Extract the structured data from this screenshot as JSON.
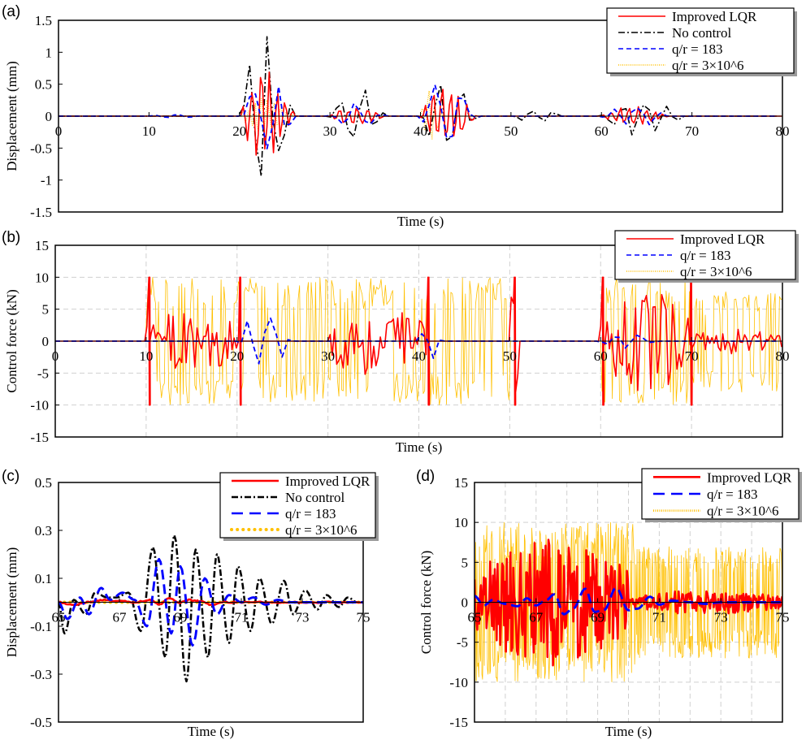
{
  "chart_data": [
    {
      "panel": "(a)",
      "type": "line",
      "xlabel": "Time (s)",
      "ylabel": "Displacement (mm)",
      "xlim": [
        0,
        80
      ],
      "ylim": [
        -1.5,
        1.5
      ],
      "xticks": [
        "0",
        "10",
        "20",
        "30",
        "40",
        "50",
        "60",
        "70",
        "80"
      ],
      "yticks": [
        "1.5",
        "1",
        "0.5",
        "0",
        "-0.5",
        "-1",
        "-1.5"
      ],
      "ytick_values": [
        1.5,
        1,
        0.5,
        0,
        -0.5,
        -1,
        -1.5
      ],
      "grid": false,
      "legend_position": "top-right",
      "series": [
        {
          "name": "Improved LQR",
          "color": "#ff0000",
          "style": "solid",
          "bursts": [
            [
              20,
              30,
              0.75
            ],
            [
              30,
              40,
              0.15
            ],
            [
              40,
              50,
              0.5
            ],
            [
              60,
              72,
              0.15
            ]
          ]
        },
        {
          "name": "No control",
          "color": "#000000",
          "style": "dashdot",
          "bursts": [
            [
              20,
              30,
              1.35
            ],
            [
              30,
              40,
              0.5
            ],
            [
              40,
              50,
              0.65
            ],
            [
              50,
              60,
              0.1
            ],
            [
              60,
              75,
              0.3
            ]
          ]
        },
        {
          "name": "q/r = 183",
          "color": "#0000ff",
          "style": "dashed",
          "bursts": [
            [
              10,
              20,
              0.03
            ],
            [
              20,
              30,
              0.8
            ],
            [
              30,
              40,
              0.2
            ],
            [
              40,
              50,
              0.55
            ],
            [
              60,
              72,
              0.2
            ]
          ]
        },
        {
          "name": "q/r = 3×10^6",
          "color": "#ffc000",
          "style": "dotted",
          "bursts": [
            [
              20,
              30,
              0.3
            ],
            [
              40,
              44,
              0.45
            ]
          ]
        }
      ],
      "peaks": {
        "No control": {
          "max": 1.35,
          "min": -1.17
        },
        "Improved LQR": {
          "max": 0.75,
          "min": -0.6
        }
      }
    },
    {
      "panel": "(b)",
      "type": "line",
      "xlabel": "Time (s)",
      "ylabel": "Control force (kN)",
      "xlim": [
        0,
        80
      ],
      "ylim": [
        -15,
        15
      ],
      "xticks": [
        "0",
        "10",
        "20",
        "30",
        "40",
        "50",
        "60",
        "70",
        "80"
      ],
      "yticks": [
        "15",
        "10",
        "5",
        "0",
        "-5",
        "-10",
        "-15"
      ],
      "ytick_values": [
        15,
        10,
        5,
        0,
        -5,
        -10,
        -15
      ],
      "grid": true,
      "legend_position": "top-right",
      "series": [
        {
          "name": "Improved LQR",
          "color": "#ff0000",
          "style": "solid",
          "bursts": [
            [
              10,
              20,
              5
            ],
            [
              30,
              41,
              6
            ],
            [
              50,
              51,
              10
            ],
            [
              60,
              70,
              8
            ],
            [
              70,
              80,
              2
            ]
          ]
        },
        {
          "name": "q/r = 183",
          "color": "#0000ff",
          "style": "dashed",
          "bursts": [
            [
              20,
              30,
              5.5
            ],
            [
              40,
              44,
              4
            ],
            [
              60,
              70,
              1.5
            ]
          ]
        },
        {
          "name": "q/r = 3×10^6",
          "color": "#ffc000",
          "style": "dotted",
          "bursts": [
            [
              10,
              50,
              10
            ],
            [
              60,
              70,
              10
            ],
            [
              70,
              80,
              8
            ]
          ]
        }
      ],
      "saturation_limit": 10
    },
    {
      "panel": "(c)",
      "type": "line",
      "xlabel": "Time (s)",
      "ylabel": "Displacement (mm)",
      "xlim": [
        65,
        75
      ],
      "ylim": [
        -0.5,
        0.5
      ],
      "xticks": [
        "65",
        "67",
        "69",
        "71",
        "73",
        "75"
      ],
      "xtick_values": [
        65,
        67,
        69,
        71,
        73,
        75
      ],
      "yticks": [
        "0.5",
        "0.3",
        "0.1",
        "-0.1",
        "-0.3",
        "-0.5"
      ],
      "ytick_values": [
        0.5,
        0.3,
        0.1,
        -0.1,
        -0.3,
        -0.5
      ],
      "grid": false,
      "legend_position": "top-right",
      "series": [
        {
          "name": "Improved LQR",
          "color": "#ff0000",
          "style": "solid",
          "x": [
            65,
            65.5,
            66,
            66.5,
            67,
            67.5,
            68,
            68.3,
            68.6,
            69,
            69.3,
            69.6,
            70,
            70.5,
            71,
            72,
            73,
            74,
            75
          ],
          "y": [
            0,
            -0.01,
            0,
            0.01,
            0.005,
            0,
            0.01,
            -0.01,
            0.015,
            0,
            0.01,
            0.005,
            -0.01,
            0,
            0,
            0,
            0,
            0,
            0
          ]
        },
        {
          "name": "No control",
          "color": "#000000",
          "style": "dashdot",
          "x": [
            65,
            65.2,
            65.5,
            65.9,
            66.2,
            66.6,
            66.9,
            67.3,
            67.7,
            68.1,
            68.5,
            68.8,
            69.2,
            69.5,
            69.9,
            70.2,
            70.6,
            70.9,
            71.3,
            71.6,
            72,
            72.4,
            72.7,
            73.1,
            73.5,
            73.8,
            74.2,
            74.5,
            74.8,
            75
          ],
          "y": [
            0,
            -0.13,
            0.01,
            -0.05,
            0.04,
            0.02,
            0.02,
            0.04,
            -0.12,
            0.23,
            -0.23,
            0.28,
            -0.33,
            0.22,
            -0.23,
            0.2,
            -0.17,
            0.15,
            -0.12,
            0.1,
            -0.09,
            0.09,
            -0.05,
            0.05,
            -0.03,
            0.03,
            -0.02,
            0.02,
            0.0,
            0.0
          ]
        },
        {
          "name": "q/r = 183",
          "color": "#0000ff",
          "style": "dashed",
          "x": [
            65,
            65.3,
            65.7,
            66,
            66.4,
            66.7,
            67.1,
            67.5,
            67.9,
            68.3,
            68.7,
            69,
            69.4,
            69.8,
            70.2,
            70.6,
            71,
            71.4,
            71.8,
            72.2,
            72.6,
            73,
            73.5,
            74,
            74.5,
            75
          ],
          "y": [
            0,
            -0.07,
            0.02,
            -0.05,
            0.06,
            0.01,
            0.04,
            0.01,
            -0.1,
            0.18,
            -0.13,
            0.15,
            -0.18,
            0.1,
            -0.05,
            0.03,
            0.0,
            0.02,
            -0.01,
            0.01,
            0,
            0,
            0,
            0,
            0,
            0
          ]
        },
        {
          "name": "q/r = 3×10^6",
          "color": "#ffc000",
          "style": "dotted",
          "x": [
            65,
            70,
            75
          ],
          "y": [
            0,
            0,
            0
          ]
        }
      ]
    },
    {
      "panel": "(d)",
      "type": "line",
      "xlabel": "Time (s)",
      "ylabel": "Control force (kN)",
      "xlim": [
        65,
        75
      ],
      "ylim": [
        -15,
        15
      ],
      "xticks": [
        "65",
        "67",
        "69",
        "71",
        "73",
        "75"
      ],
      "xtick_values": [
        65,
        67,
        69,
        71,
        73,
        75
      ],
      "yticks": [
        "15",
        "10",
        "5",
        "0",
        "-5",
        "-10",
        "-15"
      ],
      "ytick_values": [
        15,
        10,
        5,
        0,
        -5,
        -10,
        -15
      ],
      "grid": true,
      "legend_position": "top-right",
      "series": [
        {
          "name": "Improved LQR",
          "color": "#ff0000",
          "style": "solid",
          "bursts": [
            [
              65,
              70,
              8
            ],
            [
              70,
              75,
              1.5
            ]
          ],
          "peak": 10
        },
        {
          "name": "q/r = 183",
          "color": "#0000ff",
          "style": "dashed",
          "x": [
            65,
            65.3,
            65.6,
            66,
            66.4,
            66.7,
            67,
            67.3,
            67.6,
            67.9,
            68.2,
            68.6,
            68.9,
            69.2,
            69.6,
            70,
            70.3,
            70.7,
            71,
            71.4,
            72,
            72.5,
            73,
            74,
            75
          ],
          "y": [
            0.8,
            -0.4,
            0.3,
            -0.2,
            -0.5,
            0.5,
            -0.4,
            0.2,
            1.0,
            -1.5,
            -0.8,
            1.7,
            -1.2,
            -1.0,
            1.8,
            -1.0,
            -0.8,
            0.7,
            -0.3,
            0.2,
            0,
            -0.2,
            0,
            0,
            0
          ]
        },
        {
          "name": "q/r = 3×10^6",
          "color": "#ffc000",
          "style": "dotted",
          "bursts": [
            [
              65,
              70.2,
              10
            ],
            [
              70.2,
              75,
              7
            ]
          ]
        }
      ]
    }
  ],
  "labels": {
    "panel_a": "(a)",
    "panel_b": "(b)",
    "panel_c": "(c)",
    "panel_d": "(d)"
  }
}
